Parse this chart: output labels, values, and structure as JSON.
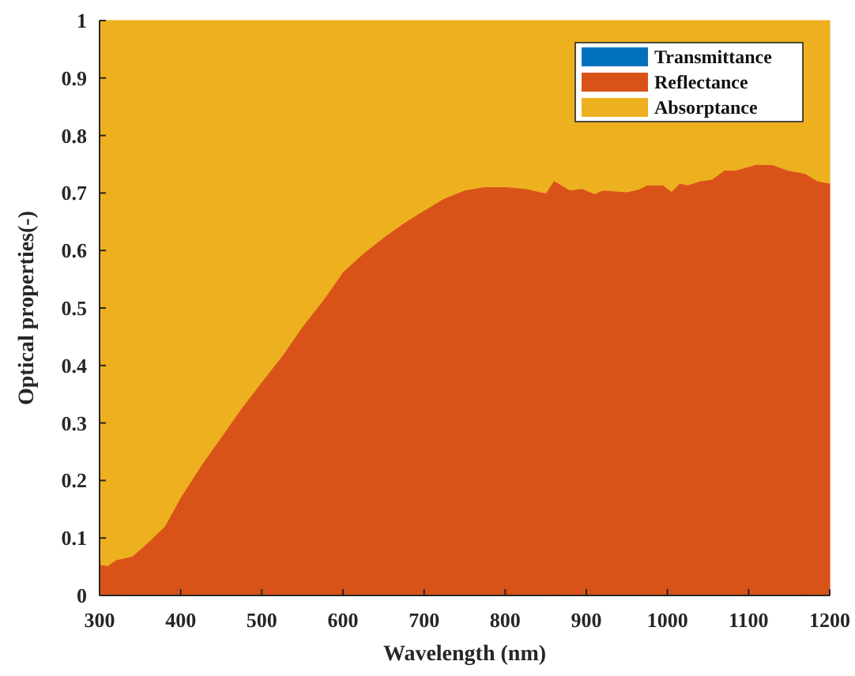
{
  "chart_data": {
    "type": "area",
    "stacked": true,
    "xlabel": "Wavelength (nm)",
    "ylabel": "Optical properties(-)",
    "x": [
      300,
      310,
      320,
      340,
      360,
      380,
      400,
      425,
      450,
      475,
      500,
      525,
      550,
      575,
      600,
      625,
      650,
      675,
      700,
      725,
      750,
      775,
      800,
      825,
      850,
      860,
      880,
      895,
      910,
      920,
      940,
      950,
      965,
      975,
      995,
      1005,
      1015,
      1025,
      1040,
      1055,
      1070,
      1085,
      1100,
      1110,
      1130,
      1150,
      1170,
      1185,
      1200
    ],
    "series": [
      {
        "name": "Transmittance",
        "color": "#0072bd",
        "values": [
          0,
          0,
          0.003,
          0,
          0,
          0,
          0,
          0,
          0,
          0,
          0,
          0,
          0,
          0,
          0,
          0,
          0,
          0,
          0,
          0,
          0,
          0,
          0,
          0,
          0,
          0.003,
          0,
          0,
          0,
          0,
          0,
          0,
          0,
          0.003,
          0,
          0,
          0,
          0,
          0,
          0,
          0,
          0,
          0,
          0,
          0,
          0,
          0.003,
          0,
          0
        ]
      },
      {
        "name": "Reflectance",
        "color": "#d95319",
        "values": [
          0.054,
          0.052,
          0.059,
          0.068,
          0.093,
          0.12,
          0.171,
          0.226,
          0.276,
          0.326,
          0.372,
          0.417,
          0.468,
          0.513,
          0.563,
          0.595,
          0.623,
          0.648,
          0.67,
          0.691,
          0.705,
          0.711,
          0.711,
          0.708,
          0.7,
          0.719,
          0.705,
          0.708,
          0.699,
          0.705,
          0.703,
          0.702,
          0.707,
          0.711,
          0.714,
          0.703,
          0.717,
          0.714,
          0.721,
          0.724,
          0.74,
          0.74,
          0.746,
          0.75,
          0.749,
          0.739,
          0.731,
          0.721,
          0.717
        ]
      },
      {
        "name": "Absorptance",
        "color": "#edb120",
        "values": [
          0.946,
          0.948,
          0.938,
          0.932,
          0.907,
          0.88,
          0.829,
          0.774,
          0.724,
          0.674,
          0.628,
          0.583,
          0.532,
          0.487,
          0.437,
          0.405,
          0.377,
          0.352,
          0.33,
          0.309,
          0.295,
          0.289,
          0.289,
          0.292,
          0.3,
          0.278,
          0.295,
          0.292,
          0.301,
          0.295,
          0.297,
          0.298,
          0.293,
          0.286,
          0.286,
          0.297,
          0.283,
          0.286,
          0.279,
          0.276,
          0.26,
          0.26,
          0.254,
          0.25,
          0.251,
          0.261,
          0.266,
          0.279,
          0.283
        ]
      }
    ],
    "xlim": [
      300,
      1200
    ],
    "xticks": [
      300,
      400,
      500,
      600,
      700,
      800,
      900,
      1000,
      1100,
      1200
    ],
    "ylim": [
      0,
      1
    ],
    "yticks": [
      0,
      0.1,
      0.2,
      0.3,
      0.4,
      0.5,
      0.6,
      0.7,
      0.8,
      0.9,
      1
    ],
    "grid": false,
    "legend": "top right"
  }
}
